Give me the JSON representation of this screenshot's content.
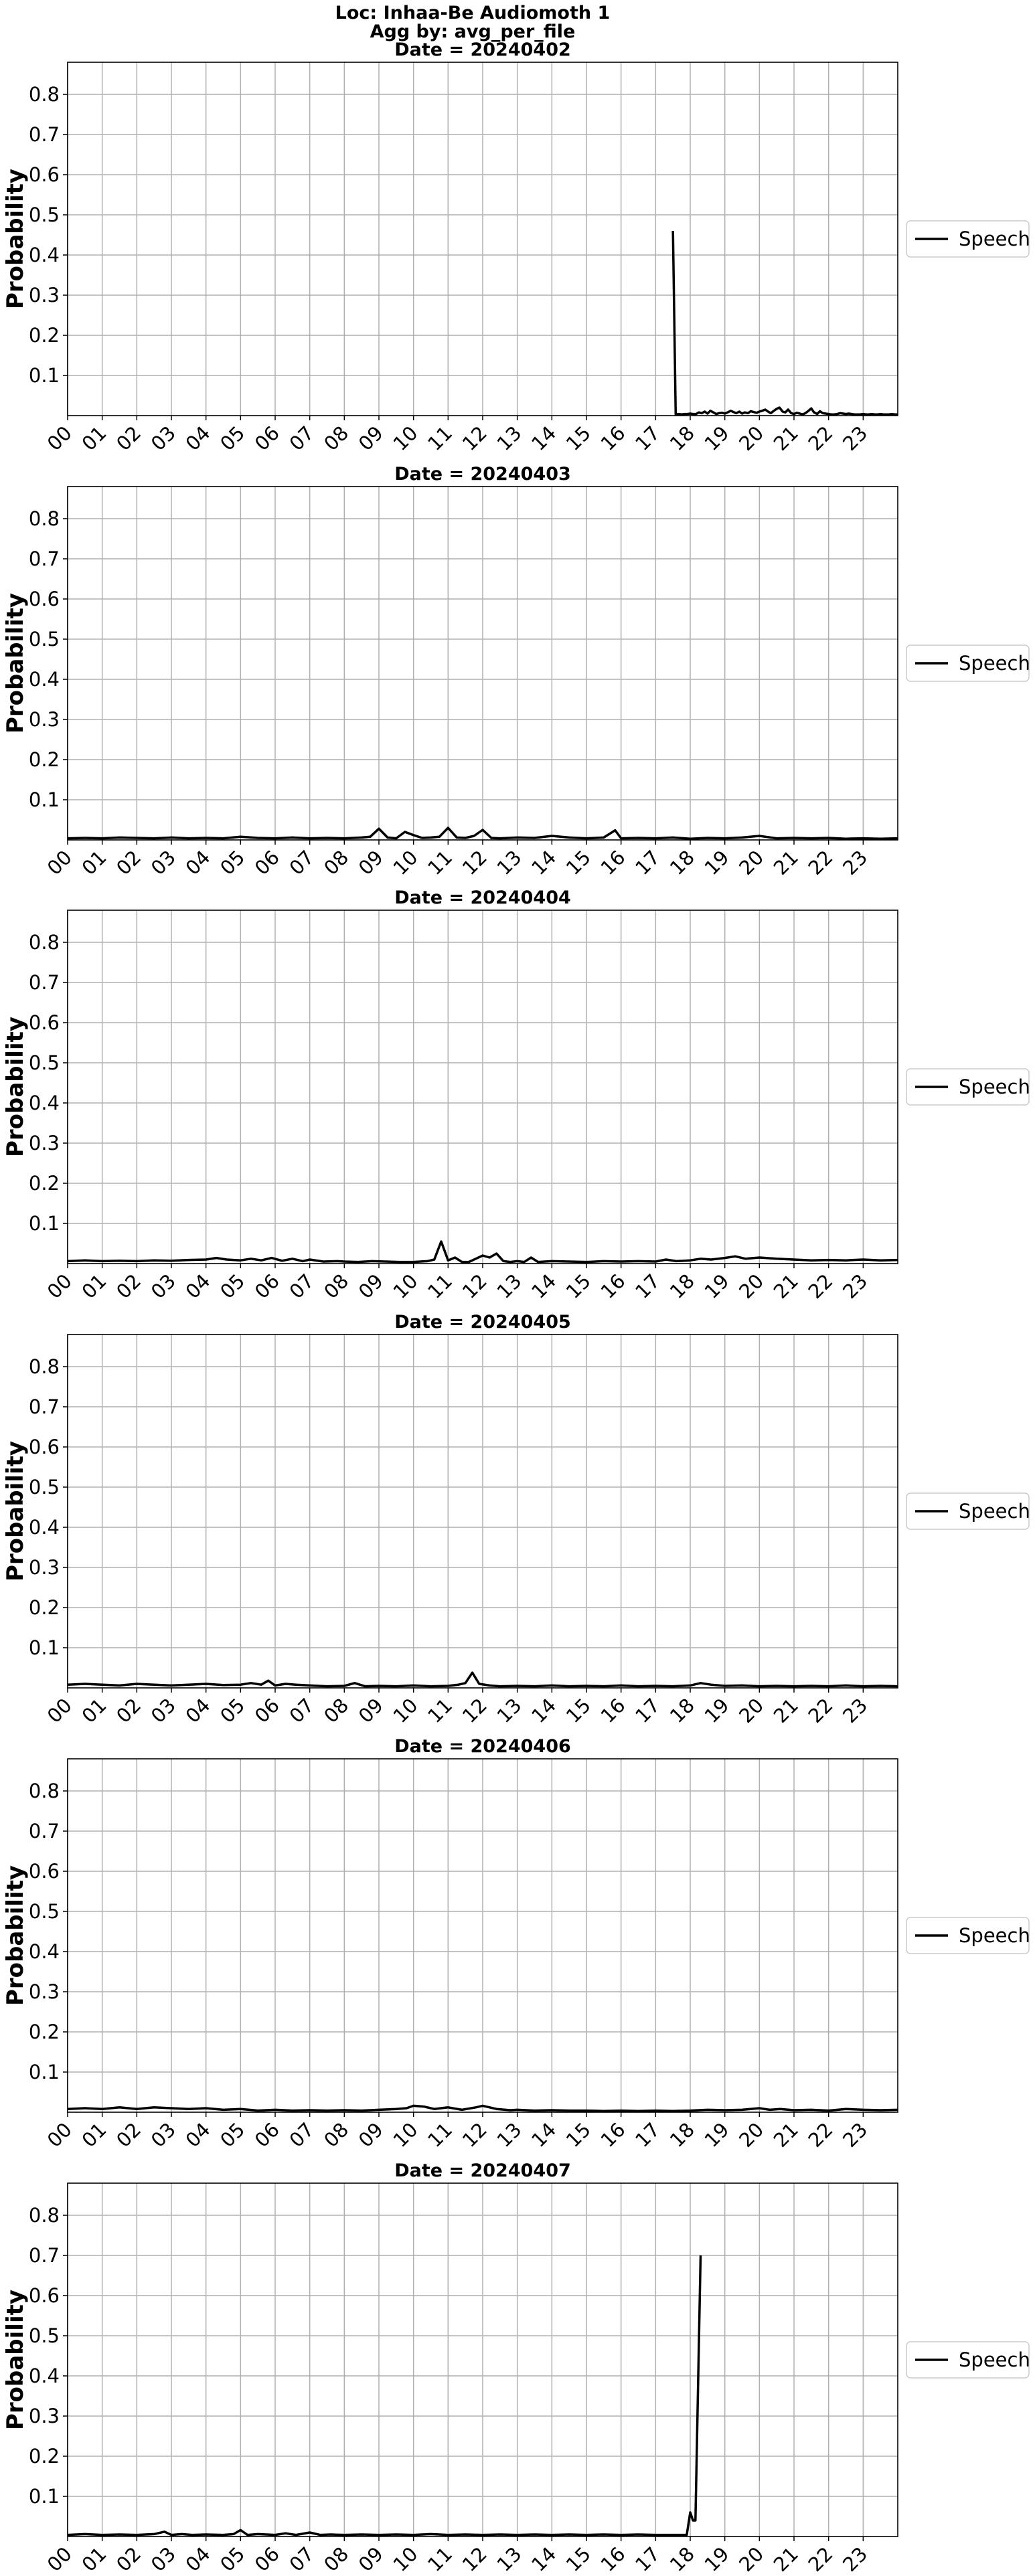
{
  "figure": {
    "location_line": "Loc: Inhaa-Be Audiomoth 1",
    "agg_line": "Agg by: avg_per_file"
  },
  "chart_data": [
    {
      "type": "line",
      "title": "Date = 20240402",
      "ylabel": "Probability",
      "xlabel": "",
      "ylim": [
        0,
        0.88
      ],
      "yticks": [
        "0.1",
        "0.2",
        "0.3",
        "0.4",
        "0.5",
        "0.6",
        "0.7",
        "0.8"
      ],
      "xlim": [
        0,
        24
      ],
      "xticks": [
        "00",
        "01",
        "02",
        "03",
        "04",
        "05",
        "06",
        "07",
        "08",
        "09",
        "10",
        "11",
        "12",
        "13",
        "14",
        "15",
        "16",
        "17",
        "18",
        "19",
        "20",
        "21",
        "22",
        "23"
      ],
      "grid": true,
      "legend_position": "right",
      "series": [
        {
          "name": "Speech",
          "color": "#000000",
          "x": [
            17.5,
            17.58,
            17.67,
            17.75,
            17.83,
            17.92,
            18.0,
            18.08,
            18.17,
            18.25,
            18.33,
            18.42,
            18.5,
            18.58,
            18.67,
            18.75,
            18.83,
            18.92,
            19.0,
            19.08,
            19.17,
            19.25,
            19.33,
            19.42,
            19.5,
            19.58,
            19.67,
            19.75,
            19.83,
            19.92,
            20.0,
            20.08,
            20.17,
            20.25,
            20.33,
            20.42,
            20.5,
            20.58,
            20.67,
            20.75,
            20.83,
            20.92,
            21.0,
            21.08,
            21.17,
            21.25,
            21.33,
            21.42,
            21.5,
            21.58,
            21.67,
            21.75,
            21.83,
            21.92,
            22.0,
            22.08,
            22.17,
            22.25,
            22.33,
            22.42,
            22.5,
            22.58,
            22.67,
            22.75,
            22.83,
            22.92,
            23.0,
            23.08,
            23.17,
            23.25,
            23.33,
            23.42,
            23.5,
            23.58,
            23.67,
            23.75,
            23.83,
            23.92,
            24.0
          ],
          "y": [
            0.46,
            0.003,
            0.004,
            0.003,
            0.004,
            0.004,
            0.005,
            0.004,
            0.004,
            0.008,
            0.006,
            0.01,
            0.005,
            0.012,
            0.008,
            0.004,
            0.006,
            0.007,
            0.005,
            0.008,
            0.012,
            0.009,
            0.006,
            0.01,
            0.005,
            0.008,
            0.006,
            0.011,
            0.009,
            0.007,
            0.01,
            0.012,
            0.015,
            0.01,
            0.006,
            0.012,
            0.017,
            0.02,
            0.01,
            0.008,
            0.015,
            0.006,
            0.004,
            0.007,
            0.005,
            0.003,
            0.006,
            0.012,
            0.018,
            0.008,
            0.004,
            0.011,
            0.006,
            0.005,
            0.004,
            0.003,
            0.003,
            0.004,
            0.006,
            0.005,
            0.004,
            0.005,
            0.004,
            0.003,
            0.003,
            0.003,
            0.004,
            0.003,
            0.003,
            0.004,
            0.003,
            0.003,
            0.004,
            0.003,
            0.003,
            0.003,
            0.004,
            0.003,
            0.003
          ]
        }
      ]
    },
    {
      "type": "line",
      "title": "Date = 20240403",
      "ylabel": "Probability",
      "xlabel": "",
      "ylim": [
        0,
        0.88
      ],
      "yticks": [
        "0.1",
        "0.2",
        "0.3",
        "0.4",
        "0.5",
        "0.6",
        "0.7",
        "0.8"
      ],
      "xlim": [
        0,
        24
      ],
      "xticks": [
        "00",
        "01",
        "02",
        "03",
        "04",
        "05",
        "06",
        "07",
        "08",
        "09",
        "10",
        "11",
        "12",
        "13",
        "14",
        "15",
        "16",
        "17",
        "18",
        "19",
        "20",
        "21",
        "22",
        "23"
      ],
      "grid": true,
      "legend_position": "right",
      "series": [
        {
          "name": "Speech",
          "color": "#000000",
          "x": [
            0,
            0.5,
            1.0,
            1.5,
            2.0,
            2.5,
            3.0,
            3.5,
            4.0,
            4.5,
            5.0,
            5.5,
            6.0,
            6.5,
            7.0,
            7.5,
            8.0,
            8.5,
            8.75,
            9.0,
            9.25,
            9.5,
            9.75,
            10.0,
            10.25,
            10.5,
            10.75,
            11.0,
            11.25,
            11.5,
            11.75,
            12.0,
            12.25,
            12.5,
            13.0,
            13.5,
            14.0,
            14.5,
            15.0,
            15.5,
            15.83,
            16.0,
            16.5,
            17.0,
            17.5,
            18.0,
            18.5,
            19.0,
            19.5,
            20.0,
            20.5,
            21.0,
            21.5,
            22.0,
            22.5,
            23.0,
            23.5,
            24.0
          ],
          "y": [
            0.004,
            0.005,
            0.004,
            0.006,
            0.005,
            0.004,
            0.006,
            0.004,
            0.005,
            0.004,
            0.008,
            0.005,
            0.004,
            0.006,
            0.004,
            0.005,
            0.004,
            0.006,
            0.008,
            0.028,
            0.006,
            0.004,
            0.02,
            0.012,
            0.005,
            0.006,
            0.008,
            0.03,
            0.006,
            0.005,
            0.01,
            0.025,
            0.005,
            0.004,
            0.006,
            0.005,
            0.01,
            0.006,
            0.004,
            0.006,
            0.024,
            0.004,
            0.005,
            0.004,
            0.006,
            0.003,
            0.005,
            0.004,
            0.006,
            0.01,
            0.004,
            0.005,
            0.004,
            0.005,
            0.003,
            0.004,
            0.003,
            0.004
          ]
        }
      ]
    },
    {
      "type": "line",
      "title": "Date = 20240404",
      "ylabel": "Probability",
      "xlabel": "",
      "ylim": [
        0,
        0.88
      ],
      "yticks": [
        "0.1",
        "0.2",
        "0.3",
        "0.4",
        "0.5",
        "0.6",
        "0.7",
        "0.8"
      ],
      "xlim": [
        0,
        24
      ],
      "xticks": [
        "00",
        "01",
        "02",
        "03",
        "04",
        "05",
        "06",
        "07",
        "08",
        "09",
        "10",
        "11",
        "12",
        "13",
        "14",
        "15",
        "16",
        "17",
        "18",
        "19",
        "20",
        "21",
        "22",
        "23"
      ],
      "grid": true,
      "legend_position": "right",
      "series": [
        {
          "name": "Speech",
          "color": "#000000",
          "x": [
            0,
            0.5,
            1.0,
            1.5,
            2.0,
            2.5,
            3.0,
            3.5,
            4.0,
            4.3,
            4.6,
            5.0,
            5.3,
            5.6,
            5.9,
            6.2,
            6.5,
            6.8,
            7.0,
            7.4,
            7.8,
            8.0,
            8.4,
            8.8,
            9.2,
            9.6,
            10.0,
            10.4,
            10.6,
            10.8,
            11.0,
            11.2,
            11.4,
            11.6,
            11.8,
            12.0,
            12.2,
            12.4,
            12.6,
            12.8,
            13.0,
            13.2,
            13.4,
            13.6,
            14.0,
            14.5,
            15.0,
            15.5,
            16.0,
            16.5,
            17.0,
            17.3,
            17.6,
            18.0,
            18.3,
            18.6,
            19.0,
            19.3,
            19.6,
            20.0,
            20.5,
            21.0,
            21.5,
            22.0,
            22.5,
            23.0,
            23.5,
            24.0
          ],
          "y": [
            0.006,
            0.008,
            0.006,
            0.007,
            0.006,
            0.008,
            0.007,
            0.009,
            0.01,
            0.014,
            0.01,
            0.008,
            0.012,
            0.008,
            0.014,
            0.007,
            0.012,
            0.006,
            0.01,
            0.005,
            0.006,
            0.005,
            0.004,
            0.006,
            0.005,
            0.004,
            0.004,
            0.006,
            0.01,
            0.055,
            0.008,
            0.015,
            0.004,
            0.004,
            0.012,
            0.02,
            0.015,
            0.025,
            0.006,
            0.004,
            0.006,
            0.004,
            0.015,
            0.004,
            0.006,
            0.005,
            0.004,
            0.006,
            0.005,
            0.006,
            0.005,
            0.01,
            0.006,
            0.008,
            0.012,
            0.01,
            0.014,
            0.018,
            0.012,
            0.015,
            0.012,
            0.01,
            0.008,
            0.009,
            0.008,
            0.01,
            0.008,
            0.009
          ]
        }
      ]
    },
    {
      "type": "line",
      "title": "Date = 20240405",
      "ylabel": "Probability",
      "xlabel": "",
      "ylim": [
        0,
        0.88
      ],
      "yticks": [
        "0.1",
        "0.2",
        "0.3",
        "0.4",
        "0.5",
        "0.6",
        "0.7",
        "0.8"
      ],
      "xlim": [
        0,
        24
      ],
      "xticks": [
        "00",
        "01",
        "02",
        "03",
        "04",
        "05",
        "06",
        "07",
        "08",
        "09",
        "10",
        "11",
        "12",
        "13",
        "14",
        "15",
        "16",
        "17",
        "18",
        "19",
        "20",
        "21",
        "22",
        "23"
      ],
      "grid": true,
      "legend_position": "right",
      "series": [
        {
          "name": "Speech",
          "color": "#000000",
          "x": [
            0,
            0.5,
            1.0,
            1.5,
            2.0,
            2.5,
            3.0,
            3.5,
            4.0,
            4.5,
            5.0,
            5.3,
            5.6,
            5.8,
            6.0,
            6.3,
            6.6,
            7.0,
            7.5,
            8.0,
            8.3,
            8.6,
            9.0,
            9.5,
            10.0,
            10.5,
            11.0,
            11.3,
            11.5,
            11.7,
            11.9,
            12.2,
            12.5,
            13.0,
            13.5,
            14.0,
            14.5,
            15.0,
            15.5,
            16.0,
            16.5,
            17.0,
            17.5,
            18.0,
            18.3,
            18.6,
            19.0,
            19.5,
            20.0,
            20.5,
            21.0,
            21.5,
            22.0,
            22.5,
            23.0,
            23.5,
            24.0
          ],
          "y": [
            0.008,
            0.01,
            0.008,
            0.006,
            0.01,
            0.008,
            0.006,
            0.008,
            0.01,
            0.007,
            0.008,
            0.012,
            0.008,
            0.018,
            0.006,
            0.01,
            0.008,
            0.006,
            0.004,
            0.005,
            0.012,
            0.004,
            0.005,
            0.004,
            0.006,
            0.004,
            0.005,
            0.008,
            0.012,
            0.038,
            0.01,
            0.006,
            0.004,
            0.005,
            0.004,
            0.006,
            0.004,
            0.005,
            0.004,
            0.006,
            0.004,
            0.005,
            0.004,
            0.006,
            0.012,
            0.008,
            0.005,
            0.006,
            0.004,
            0.005,
            0.004,
            0.005,
            0.004,
            0.006,
            0.004,
            0.005,
            0.004
          ]
        }
      ]
    },
    {
      "type": "line",
      "title": "Date = 20240406",
      "ylabel": "Probability",
      "xlabel": "",
      "ylim": [
        0,
        0.88
      ],
      "yticks": [
        "0.1",
        "0.2",
        "0.3",
        "0.4",
        "0.5",
        "0.6",
        "0.7",
        "0.8"
      ],
      "xlim": [
        0,
        24
      ],
      "xticks": [
        "00",
        "01",
        "02",
        "03",
        "04",
        "05",
        "06",
        "07",
        "08",
        "09",
        "10",
        "11",
        "12",
        "13",
        "14",
        "15",
        "16",
        "17",
        "18",
        "19",
        "20",
        "21",
        "22",
        "23"
      ],
      "grid": true,
      "legend_position": "right",
      "series": [
        {
          "name": "Speech",
          "color": "#000000",
          "x": [
            0,
            0.5,
            1.0,
            1.5,
            2.0,
            2.5,
            3.0,
            3.5,
            4.0,
            4.5,
            5.0,
            5.5,
            6.0,
            6.5,
            7.0,
            7.5,
            8.0,
            8.5,
            9.0,
            9.5,
            9.8,
            10.0,
            10.3,
            10.6,
            11.0,
            11.4,
            11.8,
            12.0,
            12.4,
            12.8,
            13.0,
            13.5,
            14.0,
            14.5,
            15.0,
            15.5,
            16.0,
            16.5,
            17.0,
            17.5,
            18.0,
            18.5,
            19.0,
            19.5,
            20.0,
            20.3,
            20.6,
            21.0,
            21.5,
            22.0,
            22.5,
            23.0,
            23.5,
            24.0
          ],
          "y": [
            0.008,
            0.01,
            0.008,
            0.012,
            0.008,
            0.012,
            0.01,
            0.008,
            0.01,
            0.006,
            0.008,
            0.004,
            0.006,
            0.004,
            0.005,
            0.004,
            0.005,
            0.004,
            0.006,
            0.008,
            0.01,
            0.016,
            0.014,
            0.008,
            0.012,
            0.006,
            0.012,
            0.016,
            0.008,
            0.005,
            0.006,
            0.004,
            0.005,
            0.004,
            0.004,
            0.003,
            0.004,
            0.003,
            0.004,
            0.003,
            0.004,
            0.006,
            0.005,
            0.006,
            0.01,
            0.006,
            0.008,
            0.005,
            0.006,
            0.004,
            0.008,
            0.006,
            0.005,
            0.006
          ]
        }
      ]
    },
    {
      "type": "line",
      "title": "Date = 20240407",
      "ylabel": "Probability",
      "xlabel": "",
      "ylim": [
        0,
        0.88
      ],
      "yticks": [
        "0.1",
        "0.2",
        "0.3",
        "0.4",
        "0.5",
        "0.6",
        "0.7",
        "0.8"
      ],
      "xlim": [
        0,
        24
      ],
      "xticks": [
        "00",
        "01",
        "02",
        "03",
        "04",
        "05",
        "06",
        "07",
        "08",
        "09",
        "10",
        "11",
        "12",
        "13",
        "14",
        "15",
        "16",
        "17",
        "18",
        "19",
        "20",
        "21",
        "22",
        "23"
      ],
      "grid": true,
      "legend_position": "right",
      "series": [
        {
          "name": "Speech",
          "color": "#000000",
          "x": [
            0,
            0.5,
            1.0,
            1.5,
            2.0,
            2.5,
            2.8,
            3.0,
            3.3,
            3.6,
            4.0,
            4.5,
            4.8,
            5.0,
            5.2,
            5.5,
            6.0,
            6.3,
            6.6,
            7.0,
            7.3,
            7.6,
            8.0,
            8.5,
            9.0,
            9.5,
            10.0,
            10.5,
            11.0,
            11.5,
            12.0,
            12.5,
            13.0,
            13.5,
            14.0,
            14.5,
            15.0,
            15.5,
            16.0,
            16.5,
            17.0,
            17.5,
            17.9,
            18.0,
            18.08,
            18.15,
            18.3
          ],
          "y": [
            0.004,
            0.006,
            0.004,
            0.005,
            0.004,
            0.006,
            0.012,
            0.004,
            0.006,
            0.004,
            0.005,
            0.004,
            0.006,
            0.016,
            0.004,
            0.006,
            0.004,
            0.008,
            0.004,
            0.01,
            0.004,
            0.005,
            0.004,
            0.005,
            0.004,
            0.005,
            0.004,
            0.006,
            0.004,
            0.005,
            0.004,
            0.005,
            0.004,
            0.005,
            0.004,
            0.005,
            0.004,
            0.005,
            0.004,
            0.005,
            0.004,
            0.004,
            0.004,
            0.06,
            0.04,
            0.04,
            0.7
          ]
        }
      ]
    }
  ]
}
